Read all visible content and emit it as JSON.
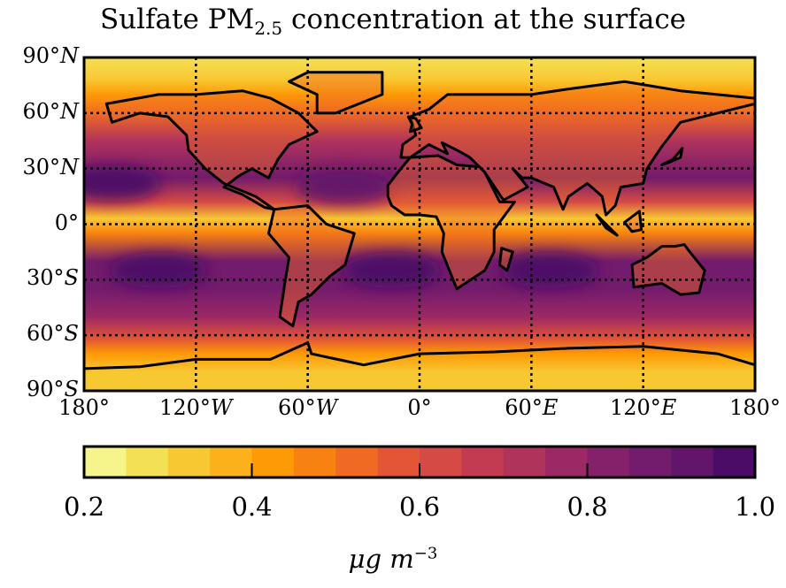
{
  "chart_data": {
    "type": "heatmap",
    "title": "Sulfate PM",
    "title_subscript": "2.5",
    "title_suffix": " concentration at the surface",
    "projection": "equirectangular",
    "lon_range": [
      -180,
      180
    ],
    "lat_range": [
      -90,
      90
    ],
    "grid": "dotted",
    "lat_ticks": [
      {
        "value": 90,
        "label": "90°",
        "hemi": "N"
      },
      {
        "value": 60,
        "label": "60°",
        "hemi": "N"
      },
      {
        "value": 30,
        "label": "30°",
        "hemi": "N"
      },
      {
        "value": 0,
        "label": "0°",
        "hemi": ""
      },
      {
        "value": -30,
        "label": "30°",
        "hemi": "S"
      },
      {
        "value": -60,
        "label": "60°",
        "hemi": "S"
      },
      {
        "value": -90,
        "label": "90°",
        "hemi": "S"
      }
    ],
    "lon_ticks": [
      {
        "value": -180,
        "label": "180°",
        "hemi": ""
      },
      {
        "value": -120,
        "label": "120°",
        "hemi": "W"
      },
      {
        "value": -60,
        "label": "60°",
        "hemi": "W"
      },
      {
        "value": 0,
        "label": "0°",
        "hemi": ""
      },
      {
        "value": 60,
        "label": "60°",
        "hemi": "E"
      },
      {
        "value": 120,
        "label": "120°",
        "hemi": "E"
      },
      {
        "value": 180,
        "label": "180°",
        "hemi": ""
      }
    ],
    "zonal_profile": [
      {
        "lat": 90,
        "value": 0.25
      },
      {
        "lat": 78,
        "value": 0.3
      },
      {
        "lat": 70,
        "value": 0.4
      },
      {
        "lat": 60,
        "value": 0.5
      },
      {
        "lat": 45,
        "value": 0.7
      },
      {
        "lat": 25,
        "value": 0.85
      },
      {
        "lat": 12,
        "value": 0.6
      },
      {
        "lat": 3,
        "value": 0.3
      },
      {
        "lat": -5,
        "value": 0.45
      },
      {
        "lat": -20,
        "value": 0.85
      },
      {
        "lat": -35,
        "value": 0.85
      },
      {
        "lat": -50,
        "value": 0.75
      },
      {
        "lat": -62,
        "value": 0.55
      },
      {
        "lat": -70,
        "value": 0.4
      },
      {
        "lat": -80,
        "value": 0.3
      },
      {
        "lat": -90,
        "value": 0.3
      }
    ],
    "maxima": [
      {
        "lon": -165,
        "lat": 22,
        "value": 0.95
      },
      {
        "lon": -40,
        "lat": 20,
        "value": 0.9
      },
      {
        "lon": -140,
        "lat": -25,
        "value": 0.95
      },
      {
        "lon": -15,
        "lat": -25,
        "value": 0.95
      },
      {
        "lon": 70,
        "lat": -25,
        "value": 0.95
      }
    ],
    "colorbar": {
      "min": 0.2,
      "max": 1.0,
      "step": 0.05,
      "colors": [
        "#f5f58c",
        "#f4e054",
        "#f8c832",
        "#fcb01a",
        "#fd9a06",
        "#f8820f",
        "#f06a24",
        "#e35535",
        "#d54a45",
        "#c23b50",
        "#b0335b",
        "#9c2865",
        "#85206b",
        "#731b6c",
        "#61166b",
        "#4a0c66"
      ],
      "ticks": [
        "0.2",
        "0.4",
        "0.6",
        "0.8",
        "1.0"
      ],
      "label": "μg m",
      "label_sup": "−3"
    }
  }
}
